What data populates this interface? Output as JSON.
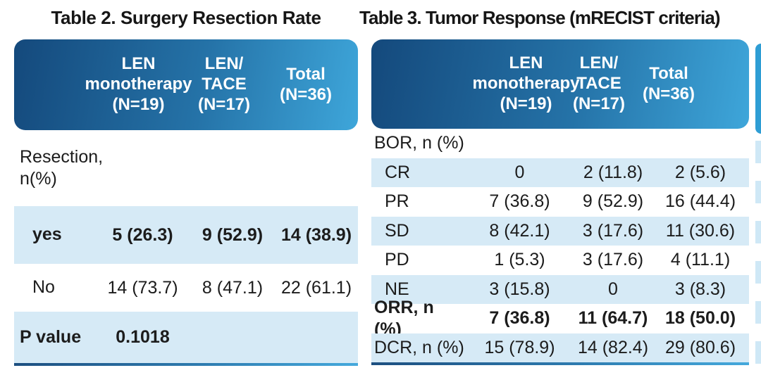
{
  "colors": {
    "header_gradient_start": "#14497C",
    "header_gradient_end": "#3EA6DA",
    "row_stripe": "#D6EAF6",
    "bottom_border_start": "#1D4F80",
    "bottom_border_end": "#45A9DC",
    "header_text": "#FFFFFF",
    "body_text": "#1C1C1C"
  },
  "table2": {
    "title": "Table 2. Surgery Resection Rate",
    "columns": [
      "LEN\nmonotherapy\n(N=19)",
      "LEN/\nTACE\n(N=17)",
      "Total\n(N=36)"
    ],
    "rows": [
      {
        "label": "Resection,\nn(%)",
        "values": [
          "",
          "",
          ""
        ]
      },
      {
        "label": "yes",
        "values": [
          "5 (26.3)",
          "9 (52.9)",
          "14 (38.9)"
        ]
      },
      {
        "label": "No",
        "values": [
          "14 (73.7)",
          "8 (47.1)",
          "22 (61.1)"
        ]
      },
      {
        "label": "P value",
        "values": [
          "0.1018",
          "",
          ""
        ]
      }
    ]
  },
  "table3": {
    "title": "Table 3. Tumor Response (mRECIST criteria)",
    "columns": [
      "LEN\nmonotherapy\n(N=19)",
      "LEN/\nTACE\n(N=17)",
      "Total\n(N=36)"
    ],
    "rows": [
      {
        "label": "BOR, n (%)",
        "values": [
          "",
          "",
          ""
        ]
      },
      {
        "label": "CR",
        "values": [
          "0",
          "2 (11.8)",
          "2 (5.6)"
        ]
      },
      {
        "label": "PR",
        "values": [
          "7 (36.8)",
          "9 (52.9)",
          "16 (44.4)"
        ]
      },
      {
        "label": "SD",
        "values": [
          "8 (42.1)",
          "3 (17.6)",
          "11 (30.6)"
        ]
      },
      {
        "label": "PD",
        "values": [
          "1 (5.3)",
          "3 (17.6)",
          "4 (11.1)"
        ]
      },
      {
        "label": "NE",
        "values": [
          "3 (15.8)",
          "0",
          "3 (8.3)"
        ]
      },
      {
        "label": "ORR, n (%)",
        "values": [
          "7 (36.8)",
          "11 (64.7)",
          "18 (50.0)"
        ]
      },
      {
        "label": "DCR, n (%)",
        "values": [
          "15 (78.9)",
          "14 (82.4)",
          "29 (80.6)"
        ]
      }
    ]
  }
}
